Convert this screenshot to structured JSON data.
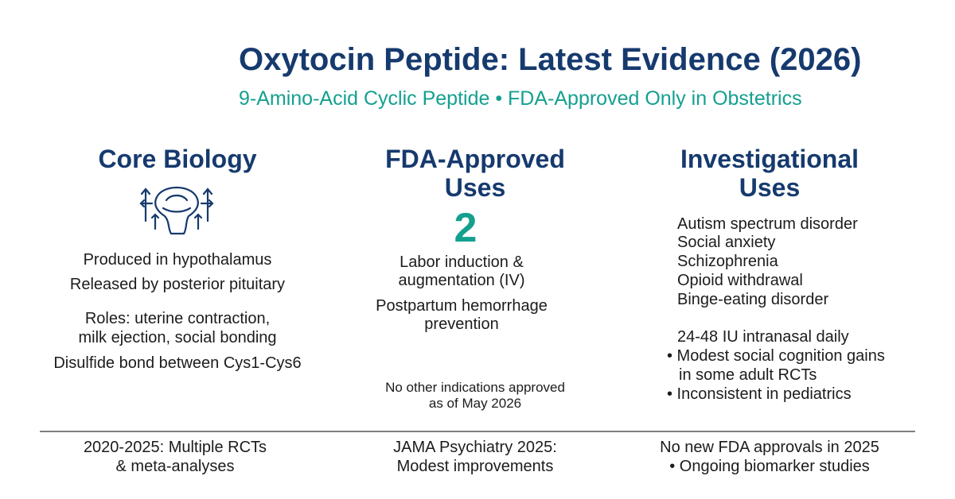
{
  "header": {
    "title": "Oxytocin Peptide: Latest Evidence (2026)",
    "subtitle": "9-Amino-Acid Cyclic Peptide • FDA-Approved Only in Obstetrics"
  },
  "columns": [
    {
      "heading": [
        "Core Biology"
      ],
      "lines": [
        "Produced in hypothalamus",
        "Released by posterior pituitary",
        "Roles: uterine contraction,",
        "milk ejection, social bonding",
        "Disulfide bond between Cys1-Cys6"
      ],
      "footer": [
        "2020-2025: Multiple RCTs",
        "& meta-analyses"
      ]
    },
    {
      "heading": [
        "FDA-Approved",
        "Uses"
      ],
      "count": 2,
      "lines": [
        "Labor induction &",
        "augmentation (IV)",
        "Postpartum hemorrhage",
        "prevention"
      ],
      "note": [
        "No other indications approved",
        "as of May 2026"
      ],
      "footer": [
        "JAMA Psychiatry 2025:",
        "Modest improvements"
      ]
    },
    {
      "heading": [
        "Investigational",
        "Uses"
      ],
      "lines": [
        "Autism spectrum disorder",
        "Social anxiety",
        "Schizophrenia",
        "Opioid withdrawal",
        "Binge-eating disorder"
      ],
      "dosing": [
        "24-48 IU intranasal daily",
        "• Modest social cognition gains",
        "in some adult RCTs",
        "• Inconsistent in pediatrics"
      ],
      "footer": [
        "No new FDA approvals in 2025",
        "• Ongoing biomarker studies"
      ]
    }
  ]
}
